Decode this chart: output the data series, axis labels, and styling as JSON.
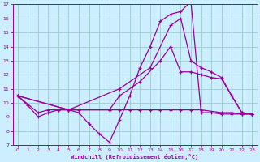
{
  "xlabel": "Windchill (Refroidissement éolien,°C)",
  "xlim": [
    -0.5,
    23.5
  ],
  "ylim": [
    7,
    17
  ],
  "xticks": [
    0,
    1,
    2,
    3,
    4,
    5,
    6,
    7,
    8,
    9,
    10,
    11,
    12,
    13,
    14,
    15,
    16,
    17,
    18,
    19,
    20,
    21,
    22,
    23
  ],
  "yticks": [
    7,
    8,
    9,
    10,
    11,
    12,
    13,
    14,
    15,
    16,
    17
  ],
  "bg_color": "#cceeff",
  "grid_color": "#99cccc",
  "line_color": "#990099",
  "lines": [
    {
      "x": [
        0,
        1,
        2,
        3,
        4,
        5,
        6,
        7,
        8,
        9,
        10,
        11,
        12,
        13,
        14,
        15,
        16,
        17,
        18,
        19,
        20,
        21,
        22,
        23
      ],
      "y": [
        10.5,
        9.8,
        9.0,
        9.3,
        9.5,
        9.5,
        9.3,
        8.5,
        7.8,
        7.2,
        8.8,
        10.5,
        12.5,
        14.0,
        15.8,
        16.3,
        16.5,
        17.2,
        9.3,
        9.3,
        9.2,
        9.2,
        9.2,
        9.2
      ]
    },
    {
      "x": [
        0,
        2,
        3,
        4,
        5,
        6,
        9,
        10,
        11,
        12,
        13,
        14,
        15,
        16,
        17,
        18,
        20,
        21,
        22,
        23
      ],
      "y": [
        10.5,
        9.3,
        9.5,
        9.5,
        9.5,
        9.5,
        9.5,
        9.5,
        9.5,
        9.5,
        9.5,
        9.5,
        9.5,
        9.5,
        9.5,
        9.5,
        9.3,
        9.3,
        9.2,
        9.2
      ]
    },
    {
      "x": [
        0,
        5,
        10,
        13,
        15,
        16,
        17,
        18,
        19,
        20,
        21,
        22,
        23
      ],
      "y": [
        10.5,
        9.5,
        11.0,
        12.5,
        15.5,
        16.0,
        13.0,
        12.5,
        12.2,
        11.8,
        10.5,
        9.3,
        9.2
      ]
    },
    {
      "x": [
        0,
        5,
        9,
        10,
        12,
        14,
        15,
        16,
        17,
        18,
        19,
        20,
        21,
        22,
        23
      ],
      "y": [
        10.5,
        9.5,
        9.5,
        10.5,
        11.5,
        13.0,
        14.0,
        12.2,
        12.2,
        12.0,
        11.8,
        11.7,
        10.5,
        9.3,
        9.2
      ]
    }
  ]
}
